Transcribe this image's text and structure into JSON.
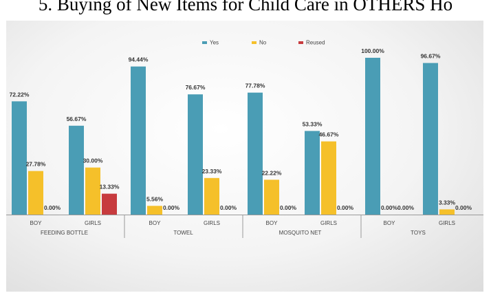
{
  "title": "5. Buying of New Items for Child Care in OTHERS Ho",
  "chart_data": {
    "type": "bar",
    "legend": {
      "placement": "top-center",
      "entries": [
        {
          "name": "Yes",
          "color": "#4a9db5"
        },
        {
          "name": "No",
          "color": "#f5c02a"
        },
        {
          "name": "Reused",
          "color": "#c73b3e"
        }
      ]
    },
    "groups": [
      {
        "label": "FEEDING BOTTLE",
        "subs": [
          {
            "label": "BOY",
            "values": [
              72.22,
              27.78,
              0.0
            ],
            "labels": [
              "72.22%",
              "27.78%",
              "0.00%"
            ]
          },
          {
            "label": "GIRLS",
            "values": [
              56.67,
              30.0,
              13.33
            ],
            "labels": [
              "56.67%",
              "30.00%",
              "13.33%"
            ]
          }
        ]
      },
      {
        "label": "TOWEL",
        "subs": [
          {
            "label": "BOY",
            "values": [
              94.44,
              5.56,
              0.0
            ],
            "labels": [
              "94.44%",
              "5.56%",
              "0.00%"
            ]
          },
          {
            "label": "GIRLS",
            "values": [
              76.67,
              23.33,
              0.0
            ],
            "labels": [
              "76.67%",
              "23.33%",
              "0.00%"
            ]
          }
        ]
      },
      {
        "label": "MOSQUITO NET",
        "subs": [
          {
            "label": "BOY",
            "values": [
              77.78,
              22.22,
              0.0
            ],
            "labels": [
              "77.78%",
              "22.22%",
              "0.00%"
            ]
          },
          {
            "label": "GIRLS",
            "values": [
              53.33,
              46.67,
              0.0
            ],
            "labels": [
              "53.33%",
              "46.67%",
              "0.00%"
            ]
          }
        ]
      },
      {
        "label": "TOYS",
        "subs": [
          {
            "label": "BOY",
            "values": [
              100.0,
              0.0,
              0.0
            ],
            "labels": [
              "100.00%",
              "0.00%",
              "0.00%"
            ]
          },
          {
            "label": "GIRLS",
            "values": [
              96.67,
              3.33,
              0.0
            ],
            "labels": [
              "96.67%",
              "3.33%",
              "0.00%"
            ]
          }
        ]
      }
    ],
    "ylim": [
      0,
      100
    ],
    "grid": false
  }
}
